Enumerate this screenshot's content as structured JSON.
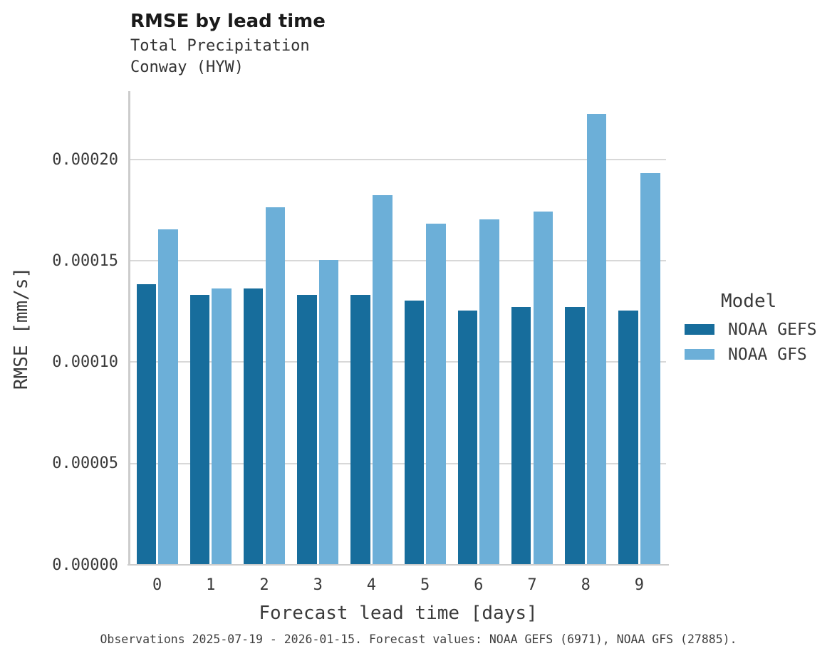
{
  "header": {
    "title": "RMSE by lead time",
    "subtitle_line1": "Total Precipitation",
    "subtitle_line2": "Conway (HYW)"
  },
  "chart_data": {
    "type": "bar",
    "title": "RMSE by lead time",
    "subtitle": [
      "Total Precipitation",
      "Conway (HYW)"
    ],
    "xlabel": "Forecast lead time [days]",
    "ylabel": "RMSE [mm/s]",
    "categories": [
      "0",
      "1",
      "2",
      "3",
      "4",
      "5",
      "6",
      "7",
      "8",
      "9"
    ],
    "series": [
      {
        "name": "NOAA GEFS",
        "color": "#176d9c",
        "values": [
          0.000138,
          0.000133,
          0.000136,
          0.000133,
          0.000133,
          0.00013,
          0.000125,
          0.000127,
          0.000127,
          0.000125
        ]
      },
      {
        "name": "NOAA GFS",
        "color": "#6cafd8",
        "values": [
          0.000165,
          0.000136,
          0.000176,
          0.00015,
          0.000182,
          0.000168,
          0.00017,
          0.000174,
          0.000222,
          0.000193
        ]
      }
    ],
    "ylim": [
      0,
      0.000234
    ],
    "yticks": [
      0,
      5e-05,
      0.0001,
      0.00015,
      0.0002
    ],
    "ytick_labels": [
      "0.00000",
      "0.00005",
      "0.00010",
      "0.00015",
      "0.00020"
    ],
    "grid": "horizontal",
    "legend_title": "Model",
    "legend_position": "right-center"
  },
  "legend": {
    "title": "Model",
    "items": [
      {
        "label": "NOAA GEFS",
        "color": "#176d9c"
      },
      {
        "label": "NOAA GFS",
        "color": "#6cafd8"
      }
    ]
  },
  "footer": {
    "note": "Observations 2025-07-19 - 2026-01-15. Forecast values: NOAA GEFS (6971), NOAA GFS (27885)."
  },
  "colors": {
    "series_dark": "#176d9c",
    "series_light": "#6cafd8",
    "gridline": "#d8d8d8",
    "spine": "#cccccc",
    "title_text": "#1a1a1a",
    "body_text": "#3a3a3a"
  }
}
